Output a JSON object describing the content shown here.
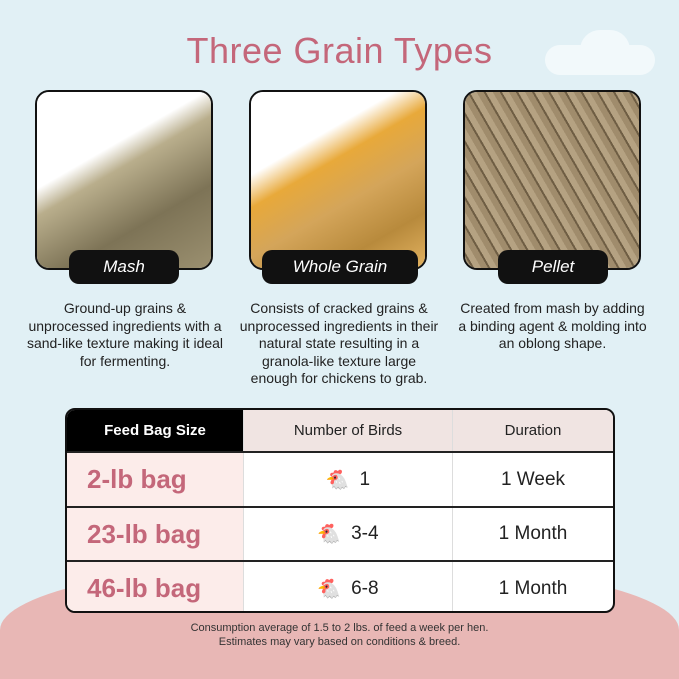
{
  "title": "Three Grain Types",
  "types": [
    {
      "label": "Mash",
      "description": "Ground-up grains & unprocessed ingredients with a sand-like texture making it ideal for fermenting."
    },
    {
      "label": "Whole Grain",
      "description": "Consists of cracked grains & unprocessed ingredients in their natural state resulting in a granola-like texture large enough for chickens to grab."
    },
    {
      "label": "Pellet",
      "description": "Created from mash by adding a binding agent & molding into an oblong shape."
    }
  ],
  "table": {
    "headers": [
      "Feed Bag Size",
      "Number of Birds",
      "Duration"
    ],
    "rows": [
      {
        "size": "2-lb bag",
        "birds": "1",
        "duration": "1 Week"
      },
      {
        "size": "23-lb bag",
        "birds": "3-4",
        "duration": "1 Month"
      },
      {
        "size": "46-lb bag",
        "birds": "6-8",
        "duration": "1 Month"
      }
    ]
  },
  "footnote": [
    "Consumption average of 1.5 to 2 lbs. of feed a week per hen.",
    "Estimates may vary based on conditions & breed."
  ],
  "colors": {
    "title": "#c4677a",
    "background": "#e1f0f5",
    "hill": "#e8b7b5"
  }
}
